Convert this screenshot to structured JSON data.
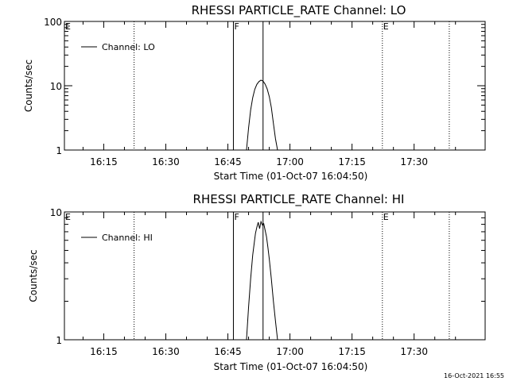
{
  "footer": {
    "timestamp": "16-Oct-2021 16:55"
  },
  "chart_data": [
    {
      "type": "line",
      "title": "RHESSI PARTICLE_RATE Channel: LO",
      "ylabel": "Counts/sec",
      "xlabel": "Start Time (01-Oct-07 16:04:50)",
      "yscale": "log",
      "ylim": [
        1,
        100
      ],
      "yticks": [
        1,
        10,
        100
      ],
      "ytick_labels": [
        "1",
        "10",
        "100"
      ],
      "xlim": [
        "16:05:30",
        "17:47:10"
      ],
      "xticks": [
        "16:15",
        "16:30",
        "16:45",
        "17:00",
        "17:15",
        "17:30"
      ],
      "legend": {
        "position": "top-left",
        "entries": [
          "Channel: LO"
        ]
      },
      "flag_letters": [
        "E",
        "F",
        "E"
      ],
      "series": [
        {
          "name": "Channel: LO",
          "x": [
            "16:49:30",
            "16:50:00",
            "16:50:30",
            "16:51:00",
            "16:51:30",
            "16:52:00",
            "16:52:30",
            "16:53:00",
            "16:53:30",
            "16:54:00",
            "16:54:30",
            "16:55:00",
            "16:55:30",
            "16:56:00",
            "16:56:30",
            "16:57:00"
          ],
          "y": [
            1,
            2.2,
            4.2,
            6.5,
            8.8,
            10.5,
            11.6,
            12.2,
            11.8,
            10.6,
            8.9,
            6.8,
            4.6,
            2.6,
            1.5,
            1
          ]
        }
      ],
      "time_markers": [
        {
          "time": "16:22:20",
          "style": "dotted"
        },
        {
          "time": "16:46:20",
          "style": "solid"
        },
        {
          "time": "16:53:30",
          "style": "solid"
        },
        {
          "time": "17:22:20",
          "style": "dotted"
        },
        {
          "time": "17:38:30",
          "style": "dotted"
        }
      ]
    },
    {
      "type": "line",
      "title": "RHESSI PARTICLE_RATE Channel: HI",
      "ylabel": "Counts/sec",
      "xlabel": "Start Time (01-Oct-07 16:04:50)",
      "yscale": "log",
      "ylim": [
        1,
        10
      ],
      "yticks": [
        1,
        10
      ],
      "ytick_labels": [
        "1",
        "10"
      ],
      "xlim": [
        "16:05:30",
        "17:47:10"
      ],
      "xticks": [
        "16:15",
        "16:30",
        "16:45",
        "17:00",
        "17:15",
        "17:30"
      ],
      "legend": {
        "position": "top-left",
        "entries": [
          "Channel: HI"
        ]
      },
      "flag_letters": [
        "E",
        "F",
        "E"
      ],
      "series": [
        {
          "name": "Channel: HI",
          "x": [
            "16:49:30",
            "16:50:00",
            "16:50:30",
            "16:51:00",
            "16:51:20",
            "16:51:40",
            "16:52:00",
            "16:52:20",
            "16:52:40",
            "16:53:00",
            "16:53:20",
            "16:53:40",
            "16:54:00",
            "16:54:20",
            "16:54:40",
            "16:55:00",
            "16:55:30",
            "16:56:00",
            "16:56:30",
            "16:57:00"
          ],
          "y": [
            1,
            1.8,
            3.0,
            4.6,
            5.6,
            6.8,
            7.6,
            8.3,
            7.4,
            8.4,
            7.9,
            8.1,
            7.2,
            6.4,
            5.3,
            4.3,
            3.0,
            2.0,
            1.4,
            1
          ]
        }
      ],
      "time_markers": [
        {
          "time": "16:22:20",
          "style": "dotted"
        },
        {
          "time": "16:46:20",
          "style": "solid"
        },
        {
          "time": "16:53:30",
          "style": "solid"
        },
        {
          "time": "17:22:20",
          "style": "dotted"
        },
        {
          "time": "17:38:30",
          "style": "dotted"
        }
      ]
    }
  ]
}
